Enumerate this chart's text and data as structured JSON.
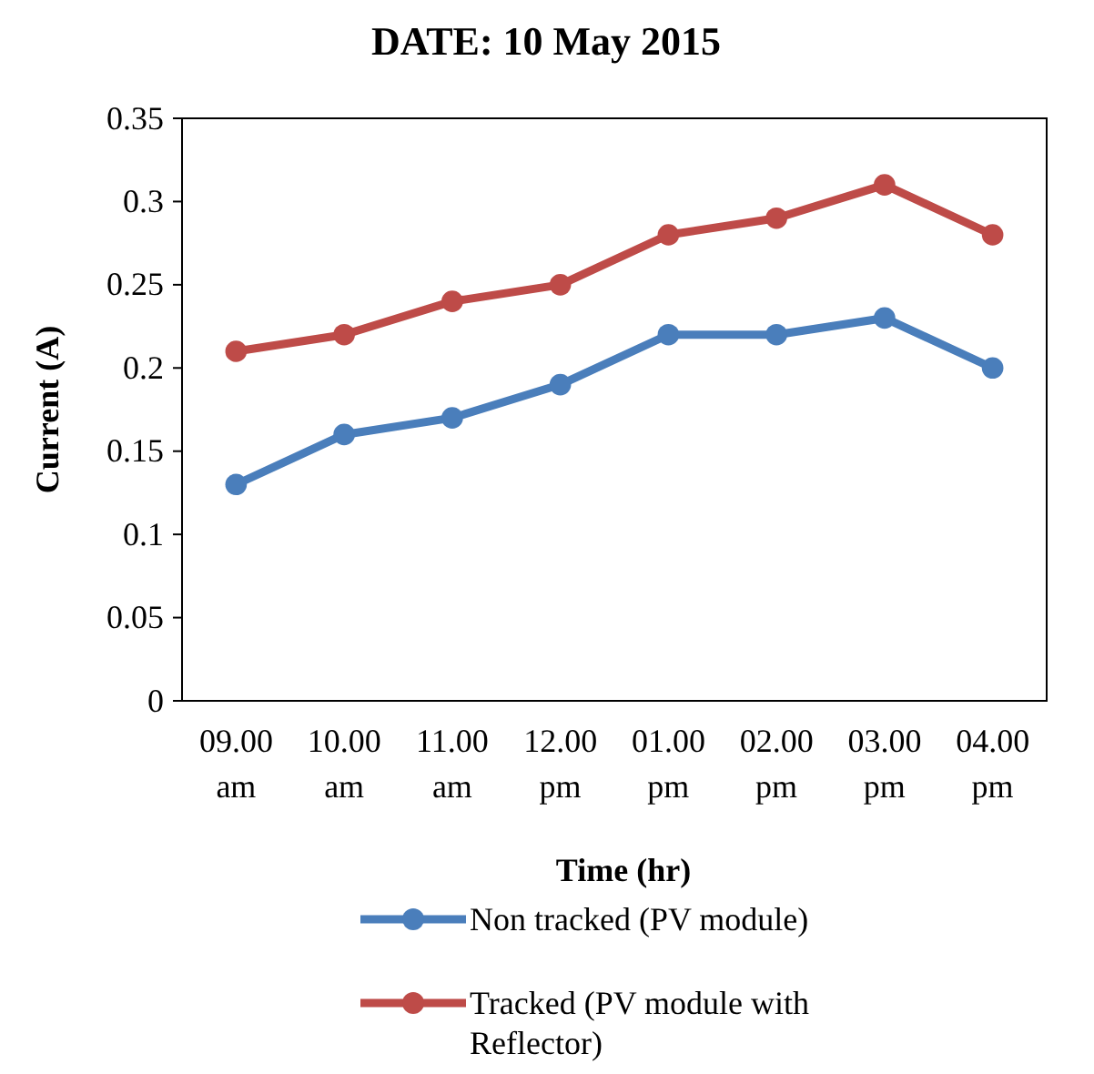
{
  "chart_data": {
    "type": "line",
    "title": "DATE: 10 May 2015",
    "xlabel": "Time (hr)",
    "ylabel": "Current  (A)",
    "categories": [
      "09.00 am",
      "10.00 am",
      "11.00 am",
      "12.00 pm",
      "01.00 pm",
      "02.00 pm",
      "03.00 pm",
      "04.00 pm"
    ],
    "series": [
      {
        "name": "Non tracked (PV module)",
        "color": "#4a7ebb",
        "values": [
          0.13,
          0.16,
          0.17,
          0.19,
          0.22,
          0.22,
          0.23,
          0.2
        ]
      },
      {
        "name": "Tracked (PV module with Reflector)",
        "color": "#be4b48",
        "values": [
          0.21,
          0.22,
          0.24,
          0.25,
          0.28,
          0.29,
          0.31,
          0.28
        ]
      }
    ],
    "ylim": [
      0,
      0.35
    ],
    "yticks": [
      0,
      0.05,
      0.1,
      0.15,
      0.2,
      0.25,
      0.3,
      0.35
    ],
    "grid": false,
    "legend": "bottom",
    "marker": "circle",
    "line_style": "solid"
  }
}
